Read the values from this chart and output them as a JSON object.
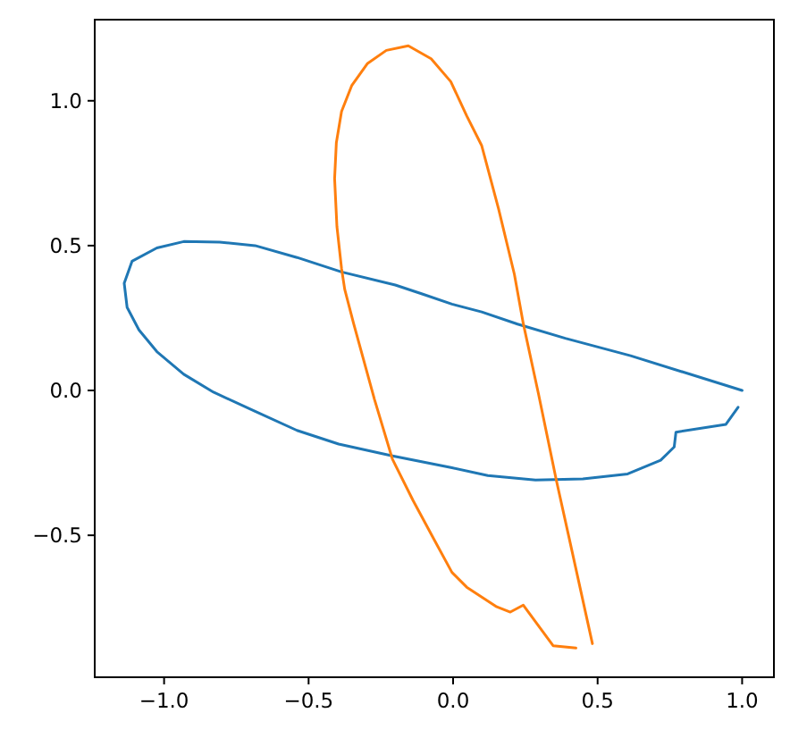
{
  "chart_data": {
    "type": "line",
    "xlim": [
      -1.24,
      1.11
    ],
    "ylim": [
      -0.99,
      1.28
    ],
    "xticks": [
      {
        "value": -1,
        "label": "−1.0"
      },
      {
        "value": -0.5,
        "label": "−0.5"
      },
      {
        "value": 0,
        "label": "0.0"
      },
      {
        "value": 0.5,
        "label": "0.5"
      },
      {
        "value": 1,
        "label": "1.0"
      }
    ],
    "yticks": [
      {
        "value": -0.5,
        "label": "−0.5"
      },
      {
        "value": 0,
        "label": "0.0"
      },
      {
        "value": 0.5,
        "label": "0.5"
      },
      {
        "value": 1,
        "label": "1.0"
      }
    ],
    "grid": false,
    "marker": "none",
    "line_style": "solid",
    "series": [
      {
        "color": "#1f77b4",
        "x": [
          1.0,
          0.614,
          0.388,
          0.223,
          0.099,
          -0.004,
          -0.107,
          -0.2,
          -0.386,
          -0.54,
          -0.685,
          -0.808,
          -0.932,
          -1.025,
          -1.111,
          -1.138,
          -1.128,
          -1.087,
          -1.025,
          -0.932,
          -0.829,
          -0.685,
          -0.54,
          -0.396,
          -0.21,
          -0.004,
          0.12,
          0.285,
          0.449,
          0.604,
          0.718,
          0.765,
          0.771,
          0.944,
          0.986
        ],
        "values": [
          0.0,
          0.12,
          0.18,
          0.229,
          0.271,
          0.298,
          0.333,
          0.364,
          0.409,
          0.459,
          0.5,
          0.512,
          0.514,
          0.492,
          0.446,
          0.37,
          0.287,
          0.209,
          0.134,
          0.056,
          -0.006,
          -0.072,
          -0.138,
          -0.185,
          -0.226,
          -0.267,
          -0.294,
          -0.309,
          -0.305,
          -0.288,
          -0.241,
          -0.195,
          -0.144,
          -0.117,
          -0.058
        ]
      },
      {
        "color": "#ff7f0e",
        "x": [
          0.482,
          0.398,
          0.357,
          0.295,
          0.243,
          0.212,
          0.157,
          0.099,
          0.047,
          -0.008,
          -0.076,
          -0.155,
          -0.231,
          -0.297,
          -0.351,
          -0.386,
          -0.404,
          -0.41,
          -0.402,
          -0.386,
          -0.375,
          -0.344,
          -0.272,
          -0.21,
          -0.138,
          -0.066,
          -0.004,
          0.047,
          0.151,
          0.198,
          0.243,
          0.346,
          0.425
        ],
        "values": [
          -0.874,
          -0.494,
          -0.309,
          -0.01,
          0.23,
          0.401,
          0.628,
          0.845,
          0.948,
          1.066,
          1.145,
          1.19,
          1.174,
          1.128,
          1.052,
          0.963,
          0.855,
          0.731,
          0.566,
          0.421,
          0.349,
          0.23,
          -0.031,
          -0.237,
          -0.381,
          -0.514,
          -0.628,
          -0.679,
          -0.747,
          -0.765,
          -0.741,
          -0.881,
          -0.889
        ]
      }
    ]
  }
}
